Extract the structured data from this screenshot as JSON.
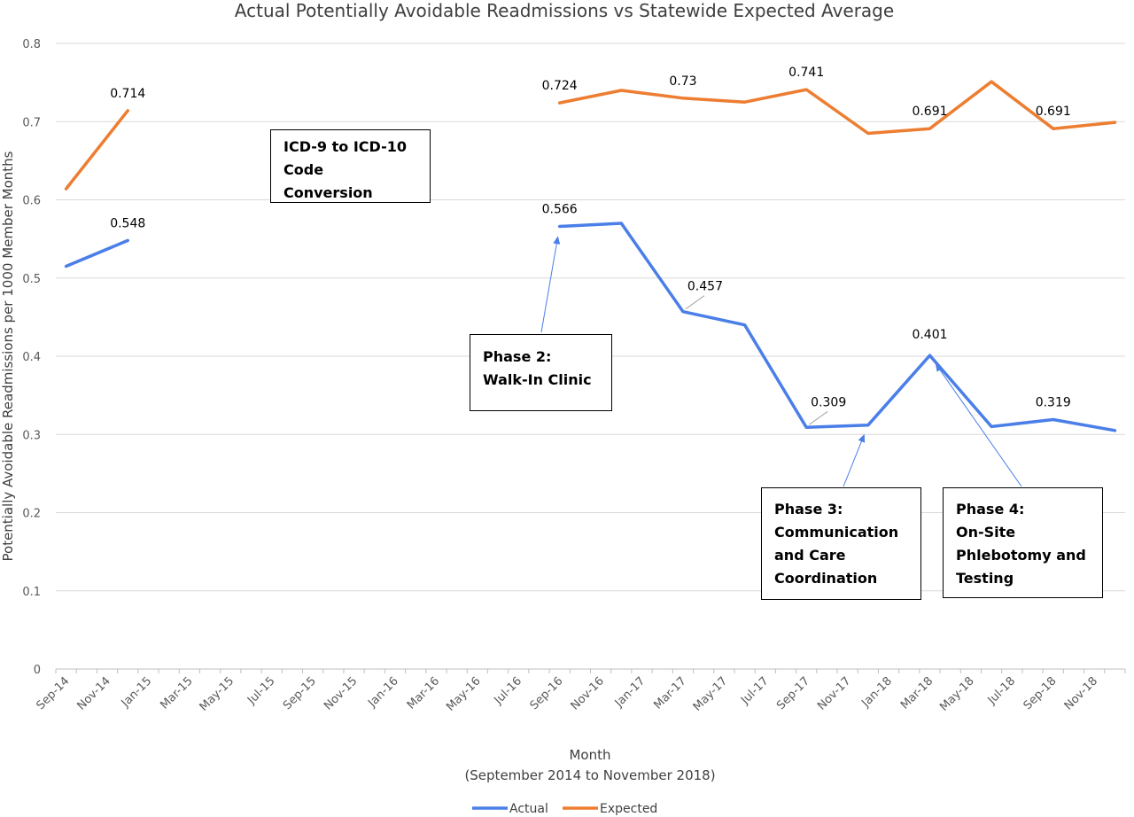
{
  "chart_data": {
    "type": "line",
    "title": "Actual Potentially Avoidable Readmissions vs Statewide Expected Average",
    "xlabel": "Month",
    "xlabel_sub": "(September 2014 to November 2018)",
    "ylabel": "Potentially Avoidable Readmissions per 1000 Member Months",
    "ylim": [
      0,
      0.8
    ],
    "yticks": [
      "0",
      "0.1",
      "0.2",
      "0.3",
      "0.4",
      "0.5",
      "0.6",
      "0.7",
      "0.8"
    ],
    "x_tick_labels": [
      "Sep-14",
      "Nov-14",
      "Jan-15",
      "Mar-15",
      "May-15",
      "Jul-15",
      "Sep-15",
      "Nov-15",
      "Jan-16",
      "Mar-16",
      "May-16",
      "Jul-16",
      "Sep-16",
      "Nov-16",
      "Jan-17",
      "Mar-17",
      "May-17",
      "Jul-17",
      "Sep-17",
      "Nov-17",
      "Jan-18",
      "Mar-18",
      "May-18",
      "Jul-18",
      "Sep-18",
      "Nov-18"
    ],
    "grid": "horizontal",
    "legend": "bottom",
    "series": [
      {
        "name": "Actual",
        "color": "#4a7ee8",
        "points": [
          {
            "x": "Sep-14",
            "y": 0.515
          },
          {
            "x": "Dec-14",
            "y": 0.548,
            "label": "0.548"
          },
          {
            "x": null,
            "y": null
          },
          {
            "x": "Sep-16",
            "y": 0.566,
            "label": "0.566"
          },
          {
            "x": "Dec-16",
            "y": 0.57
          },
          {
            "x": "Mar-17",
            "y": 0.457,
            "label": "0.457"
          },
          {
            "x": "Jun-17",
            "y": 0.44
          },
          {
            "x": "Sep-17",
            "y": 0.309,
            "label": "0.309"
          },
          {
            "x": "Dec-17",
            "y": 0.312
          },
          {
            "x": "Mar-18",
            "y": 0.401,
            "label": "0.401"
          },
          {
            "x": "Jun-18",
            "y": 0.31
          },
          {
            "x": "Sep-18",
            "y": 0.319,
            "label": "0.319"
          },
          {
            "x": "Dec-18",
            "y": 0.305
          }
        ]
      },
      {
        "name": "Expected",
        "color": "#ed7d31",
        "points": [
          {
            "x": "Sep-14",
            "y": 0.614
          },
          {
            "x": "Dec-14",
            "y": 0.714,
            "label": "0.714"
          },
          {
            "x": null,
            "y": null
          },
          {
            "x": "Sep-16",
            "y": 0.724,
            "label": "0.724"
          },
          {
            "x": "Dec-16",
            "y": 0.74
          },
          {
            "x": "Mar-17",
            "y": 0.73,
            "label": "0.73"
          },
          {
            "x": "Jun-17",
            "y": 0.725
          },
          {
            "x": "Sep-17",
            "y": 0.741,
            "label": "0.741"
          },
          {
            "x": "Dec-17",
            "y": 0.685
          },
          {
            "x": "Mar-18",
            "y": 0.691,
            "label": "0.691"
          },
          {
            "x": "Jun-18",
            "y": 0.751
          },
          {
            "x": "Sep-18",
            "y": 0.691,
            "label": "0.691"
          },
          {
            "x": "Dec-18",
            "y": 0.699
          }
        ]
      }
    ],
    "annotations": [
      {
        "id": "icd",
        "text": "ICD-9 to ICD-10\nCode Conversion"
      },
      {
        "id": "phase2",
        "text": "Phase 2:\nWalk-In Clinic",
        "arrow_to": {
          "series": "Actual",
          "x": "Sep-16"
        }
      },
      {
        "id": "phase3",
        "text": "Phase 3:\nCommunication\nand Care\nCoordination",
        "arrow_to": {
          "series": "Actual",
          "x": "Dec-17"
        }
      },
      {
        "id": "phase4",
        "text": "Phase 4:\nOn-Site\nPhlebotomy and\nTesting",
        "arrow_to": {
          "series": "Actual",
          "x": "Mar-18"
        }
      }
    ]
  }
}
